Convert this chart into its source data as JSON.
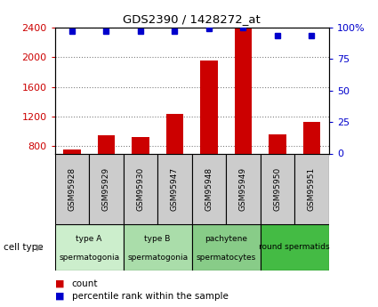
{
  "title": "GDS2390 / 1428272_at",
  "samples": [
    "GSM95928",
    "GSM95929",
    "GSM95930",
    "GSM95947",
    "GSM95948",
    "GSM95949",
    "GSM95950",
    "GSM95951"
  ],
  "counts": [
    760,
    950,
    920,
    1230,
    1960,
    2390,
    960,
    1130
  ],
  "percentile_ranks": [
    97,
    97,
    97,
    97,
    99,
    100,
    94,
    94
  ],
  "ylim_left": [
    700,
    2400
  ],
  "ylim_right": [
    0,
    100
  ],
  "yticks_left": [
    800,
    1200,
    1600,
    2000,
    2400
  ],
  "yticks_right": [
    0,
    25,
    50,
    75,
    100
  ],
  "bar_color": "#cc0000",
  "dot_color": "#0000cc",
  "bar_width": 0.5,
  "cell_types": [
    {
      "label": "type A\nspermatogonia",
      "span": [
        0,
        2
      ],
      "color": "#cceecc"
    },
    {
      "label": "type B\nspermatogonia",
      "span": [
        2,
        4
      ],
      "color": "#aaddaa"
    },
    {
      "label": "pachytene\nspermatocytes",
      "span": [
        4,
        6
      ],
      "color": "#88cc88"
    },
    {
      "label": "round spermatids",
      "span": [
        6,
        8
      ],
      "color": "#44bb44"
    }
  ],
  "sample_box_color": "#cccccc",
  "bar_color_red": "#cc0000",
  "dot_color_blue": "#0000cc",
  "cell_type_label": "cell type",
  "legend_count_label": "count",
  "legend_pct_label": "percentile rank within the sample",
  "right_axis_labels": [
    "0",
    "25",
    "50",
    "75",
    "100%"
  ]
}
